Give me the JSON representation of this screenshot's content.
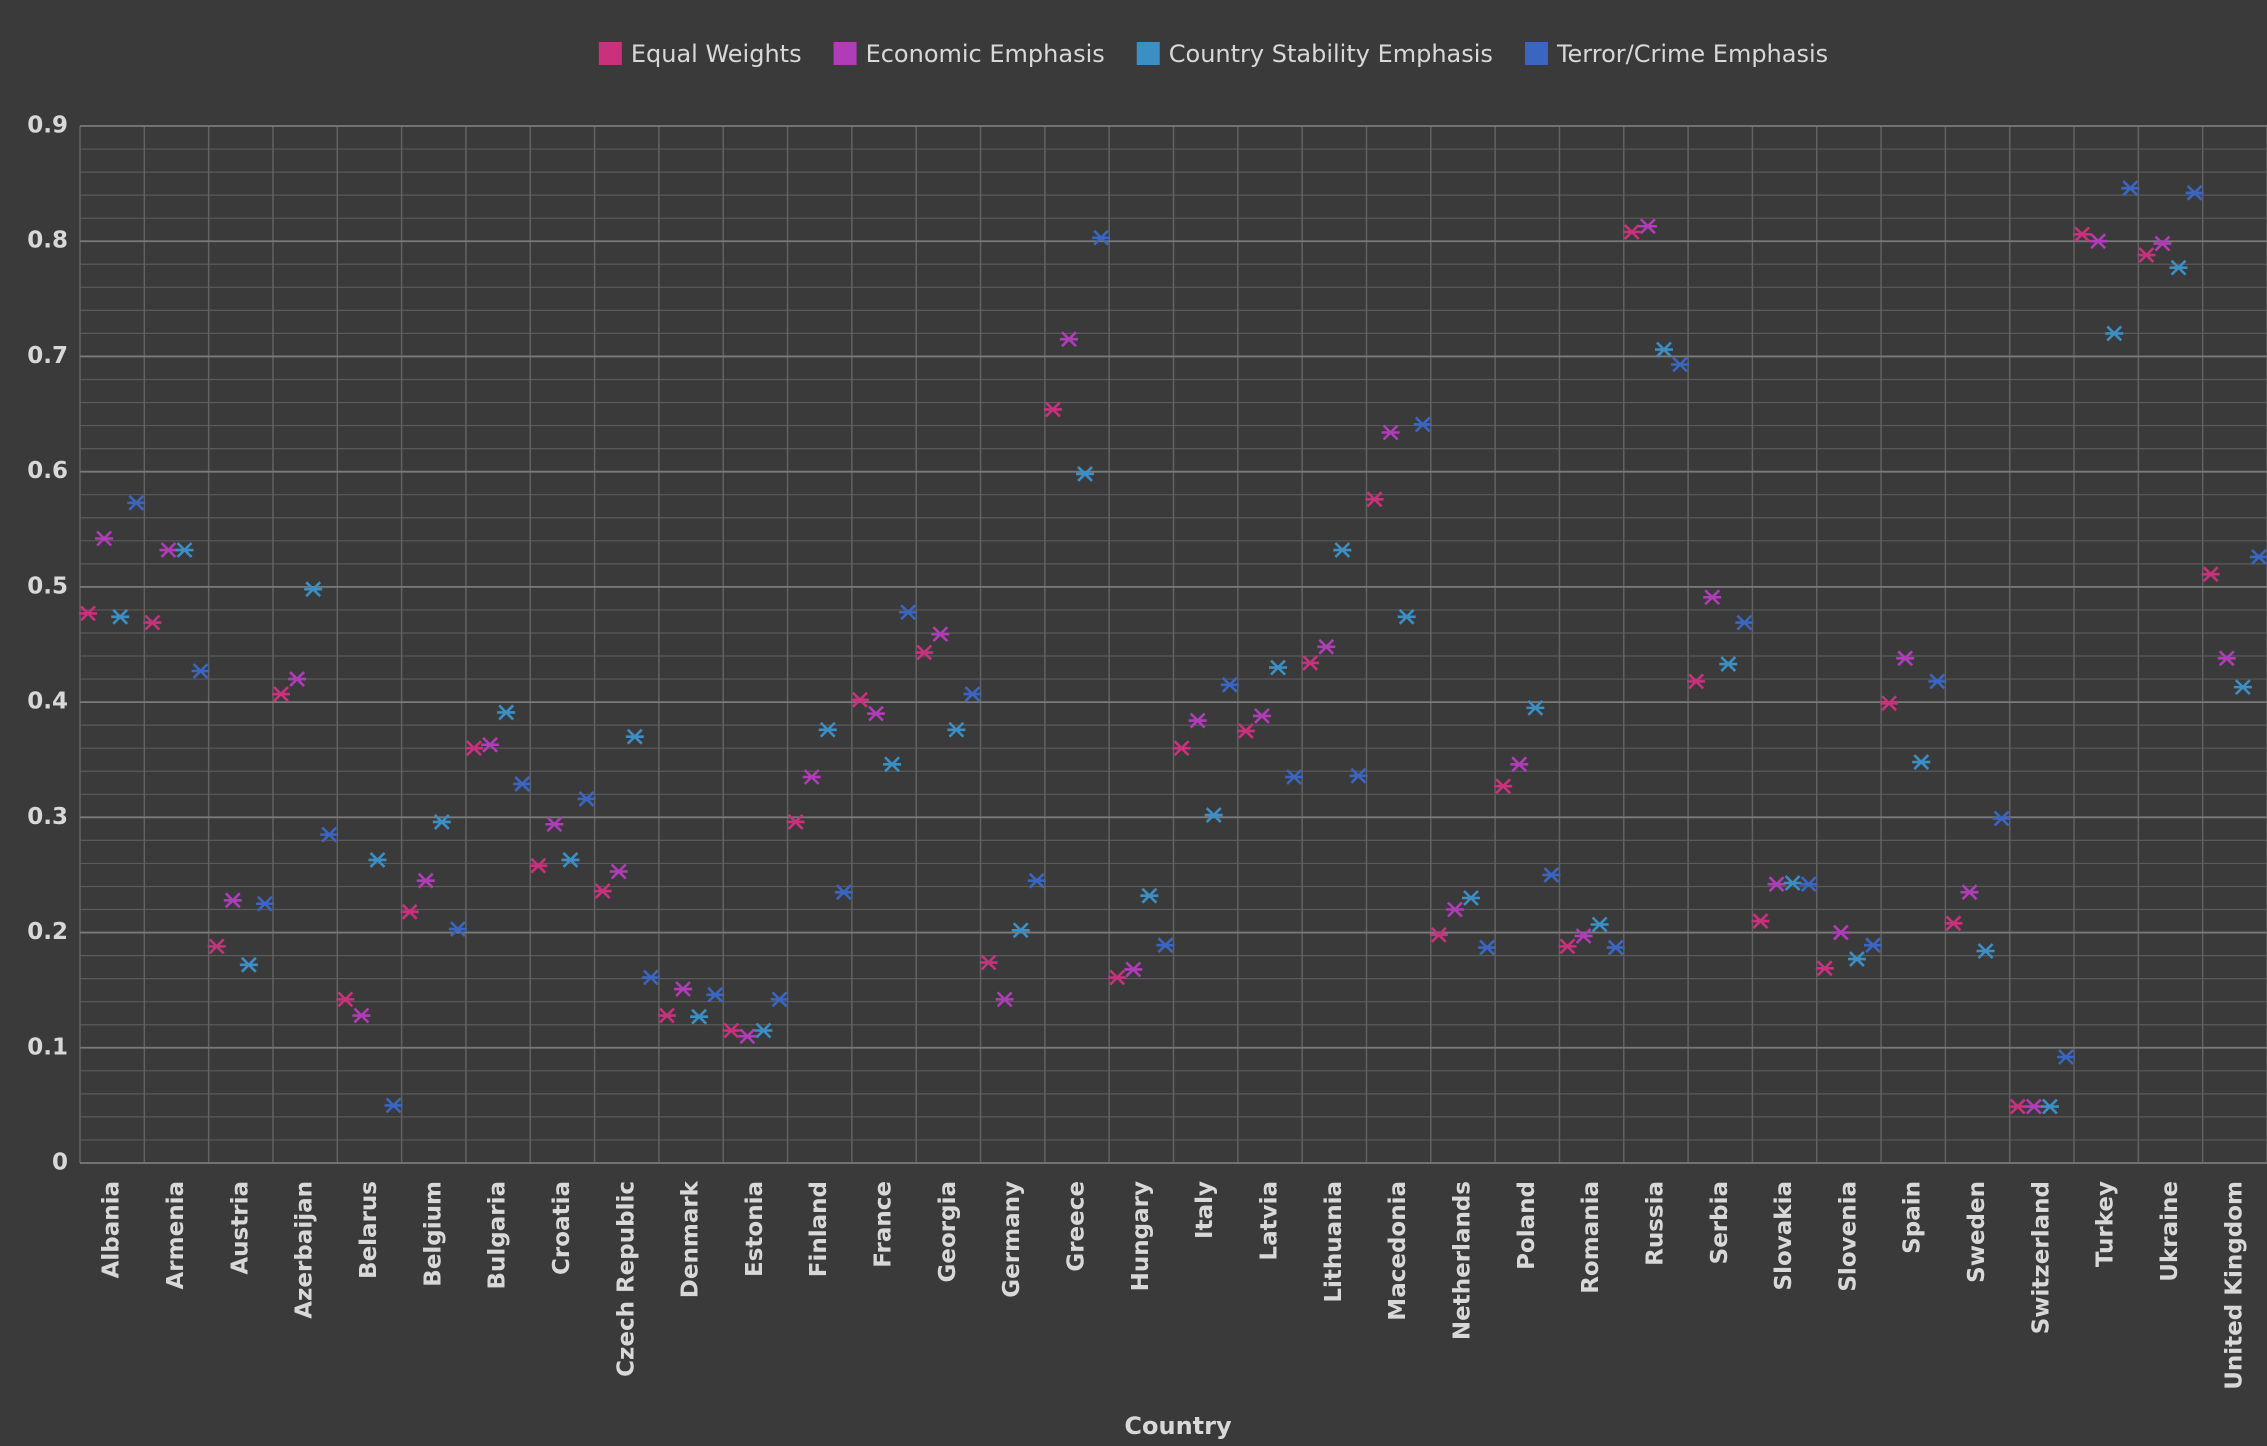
{
  "chart_data": {
    "type": "scatter",
    "x_label": "Country",
    "categories": [
      "Albania",
      "Armenia",
      "Austria",
      "Azerbaijan",
      "Belarus",
      "Belgium",
      "Bulgaria",
      "Croatia",
      "Czech Republic",
      "Denmark",
      "Estonia",
      "Finland",
      "France",
      "Georgia",
      "Germany",
      "Greece",
      "Hungary",
      "Italy",
      "Latvia",
      "Lithuania",
      "Macedonia",
      "Netherlands",
      "Poland",
      "Romania",
      "Russia",
      "Serbia",
      "Slovakia",
      "Slovenia",
      "Spain",
      "Sweden",
      "Switzerland",
      "Turkey",
      "Ukraine",
      "United Kingdom"
    ],
    "series": [
      {
        "name": "Equal Weights",
        "color": "#c9317d",
        "values": [
          0.477,
          0.469,
          0.188,
          0.407,
          0.142,
          0.218,
          0.36,
          0.258,
          0.236,
          0.128,
          0.115,
          0.296,
          0.402,
          0.443,
          0.174,
          0.654,
          0.161,
          0.36,
          0.375,
          0.434,
          0.576,
          0.198,
          0.327,
          0.188,
          0.808,
          0.418,
          0.21,
          0.169,
          0.399,
          0.208,
          0.049,
          0.806,
          0.788,
          0.511
        ]
      },
      {
        "name": "Economic Emphasis",
        "color": "#b03cb8",
        "values": [
          0.542,
          0.532,
          0.228,
          0.42,
          0.128,
          0.245,
          0.363,
          0.294,
          0.253,
          0.151,
          0.11,
          0.335,
          0.39,
          0.459,
          0.142,
          0.715,
          0.168,
          0.384,
          0.388,
          0.448,
          0.634,
          0.22,
          0.346,
          0.197,
          0.813,
          0.491,
          0.242,
          0.2,
          0.438,
          0.235,
          0.049,
          0.8,
          0.798,
          0.438
        ]
      },
      {
        "name": "Country Stability Emphasis",
        "color": "#3b8fc4",
        "values": [
          0.474,
          0.532,
          0.172,
          0.498,
          0.263,
          0.296,
          0.391,
          0.263,
          0.37,
          0.127,
          0.115,
          0.376,
          0.346,
          0.376,
          0.202,
          0.598,
          0.232,
          0.302,
          0.43,
          0.532,
          0.474,
          0.23,
          0.395,
          0.207,
          0.706,
          0.433,
          0.243,
          0.177,
          0.348,
          0.184,
          0.049,
          0.72,
          0.777,
          0.413
        ]
      },
      {
        "name": "Terror/Crime Emphasis",
        "color": "#3a66c2",
        "values": [
          0.573,
          0.427,
          0.225,
          0.285,
          0.05,
          0.203,
          0.329,
          0.316,
          0.161,
          0.146,
          0.142,
          0.235,
          0.478,
          0.407,
          0.245,
          0.803,
          0.189,
          0.415,
          0.335,
          0.336,
          0.641,
          0.187,
          0.25,
          0.187,
          0.693,
          0.469,
          0.242,
          0.189,
          0.418,
          0.299,
          0.092,
          0.846,
          0.842,
          0.526
        ]
      }
    ],
    "ylim": [
      0,
      0.9
    ],
    "yticks": [
      0,
      0.1,
      0.2,
      0.3,
      0.4,
      0.5,
      0.6,
      0.7,
      0.8,
      0.9
    ],
    "grid": true,
    "minor_divisions": 5,
    "legend": "top"
  }
}
